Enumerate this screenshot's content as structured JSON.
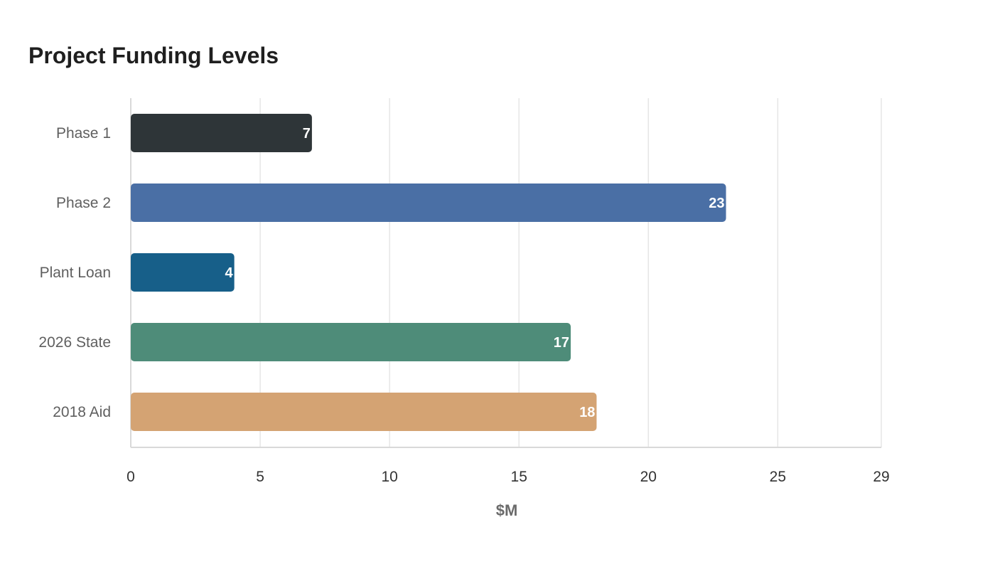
{
  "chart_data": {
    "type": "bar",
    "orientation": "horizontal",
    "title": "Project Funding Levels",
    "xlabel": "$M",
    "ylabel": "",
    "categories": [
      "Phase 1",
      "Phase 2",
      "Plant Loan",
      "2026 State",
      "2018 Aid"
    ],
    "values": [
      7,
      23,
      4,
      17,
      18
    ],
    "xlim": [
      0,
      29
    ],
    "x_ticks": [
      0,
      5,
      10,
      15,
      20,
      25,
      29
    ],
    "colors": [
      "#2e3538",
      "#4a6fa5",
      "#175f89",
      "#4e8c79",
      "#d4a373"
    ],
    "grid": true,
    "legend": "none"
  }
}
